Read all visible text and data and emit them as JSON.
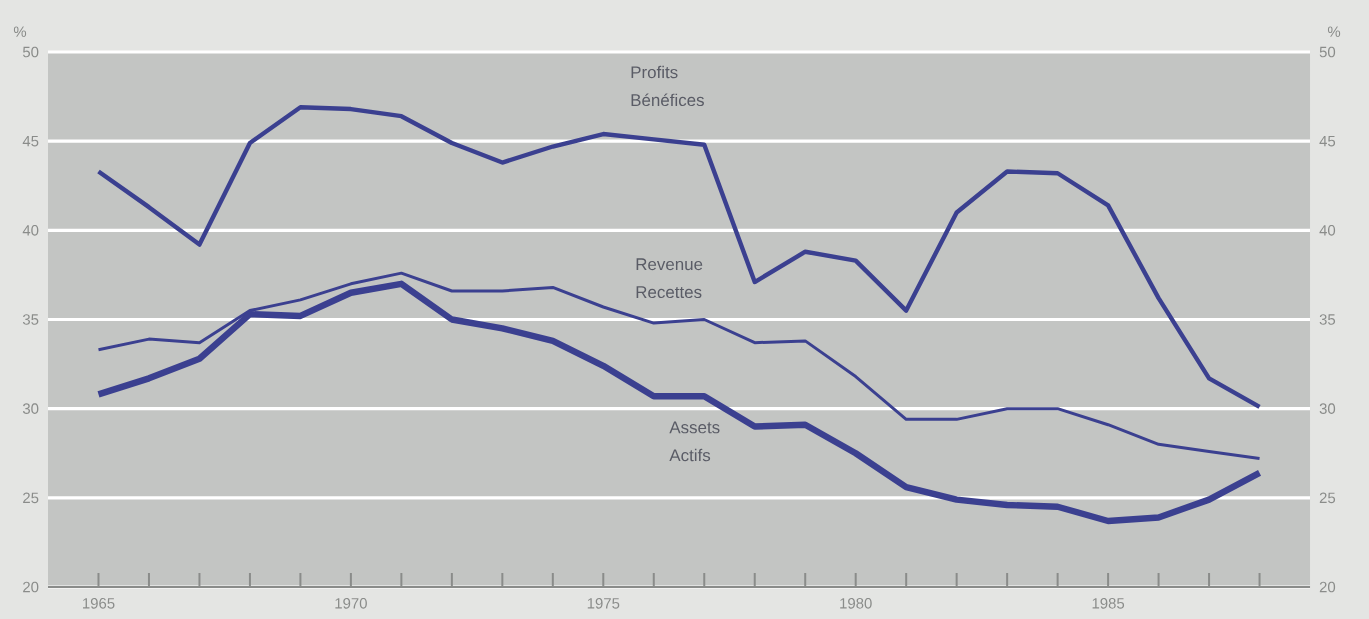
{
  "chart_data": {
    "type": "line",
    "ylabel": "%",
    "y2label": "%",
    "x": [
      1965,
      1966,
      1967,
      1968,
      1969,
      1970,
      1971,
      1972,
      1973,
      1974,
      1975,
      1976,
      1977,
      1978,
      1979,
      1980,
      1981,
      1982,
      1983,
      1984,
      1985,
      1986,
      1987,
      1988
    ],
    "series": [
      {
        "name": "Profits Bénéfices",
        "color": "#3b4090",
        "values": [
          43.3,
          41.3,
          39.2,
          44.9,
          46.9,
          46.8,
          46.4,
          44.9,
          43.8,
          44.7,
          45.4,
          45.1,
          44.8,
          37.1,
          38.8,
          38.3,
          35.5,
          41.0,
          43.3,
          43.2,
          41.4,
          36.2,
          31.7,
          30.1
        ]
      },
      {
        "name": "Revenue Recettes",
        "color": "#3b4090",
        "values": [
          33.3,
          33.9,
          33.7,
          35.5,
          36.1,
          37.0,
          37.6,
          36.6,
          36.6,
          36.8,
          35.7,
          34.8,
          35.0,
          33.7,
          33.8,
          31.8,
          29.4,
          29.4,
          30.0,
          30.0,
          29.1,
          28.0,
          27.6,
          27.2
        ]
      },
      {
        "name": "Assets Actifs",
        "color": "#3b4090",
        "values": [
          30.8,
          31.7,
          32.8,
          35.3,
          35.2,
          36.5,
          37.0,
          35.0,
          34.5,
          33.8,
          32.4,
          30.7,
          30.7,
          29.0,
          29.1,
          27.5,
          25.6,
          24.9,
          24.6,
          24.5,
          23.7,
          23.9,
          24.9,
          26.4
        ]
      }
    ],
    "xlim": [
      1964,
      1989
    ],
    "xticks": [
      {
        "value": 1965,
        "label": "1965"
      },
      {
        "value": 1966,
        "label": null
      },
      {
        "value": 1967,
        "label": null
      },
      {
        "value": 1968,
        "label": null
      },
      {
        "value": 1969,
        "label": null
      },
      {
        "value": 1970,
        "label": "1970"
      },
      {
        "value": 1971,
        "label": null
      },
      {
        "value": 1972,
        "label": null
      },
      {
        "value": 1973,
        "label": null
      },
      {
        "value": 1974,
        "label": null
      },
      {
        "value": 1975,
        "label": "1975"
      },
      {
        "value": 1976,
        "label": null
      },
      {
        "value": 1977,
        "label": null
      },
      {
        "value": 1978,
        "label": null
      },
      {
        "value": 1979,
        "label": null
      },
      {
        "value": 1980,
        "label": "1980"
      },
      {
        "value": 1981,
        "label": null
      },
      {
        "value": 1982,
        "label": null
      },
      {
        "value": 1983,
        "label": null
      },
      {
        "value": 1984,
        "label": null
      },
      {
        "value": 1985,
        "label": "1985"
      },
      {
        "value": 1986,
        "label": null
      },
      {
        "value": 1987,
        "label": null
      },
      {
        "value": 1988,
        "label": null
      }
    ],
    "ylim": [
      20,
      50
    ],
    "yticks": [
      20,
      25,
      30,
      35,
      40,
      45,
      50
    ],
    "y2lim": [
      20,
      50
    ],
    "y2ticks": [
      20,
      25,
      30,
      35,
      40,
      45,
      50
    ],
    "grid": "y",
    "marker": "none",
    "line_style": "solid"
  }
}
